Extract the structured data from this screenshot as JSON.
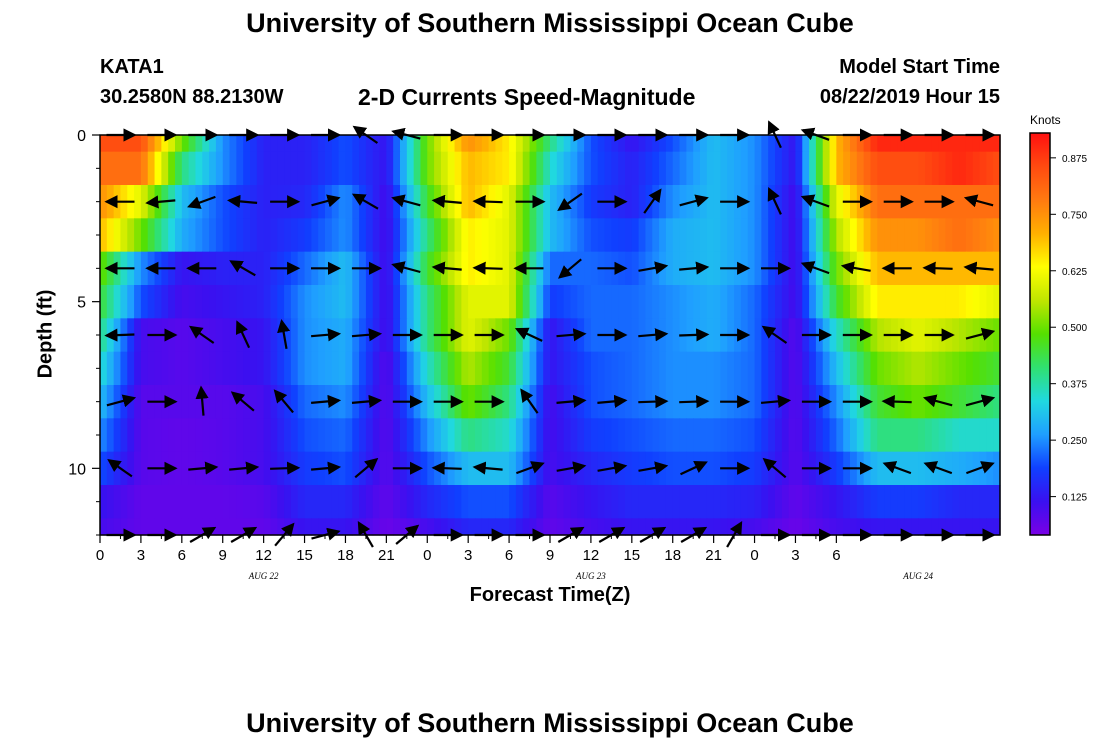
{
  "header": {
    "org_title": "University of Southern Mississippi Ocean Cube",
    "station": "KATA1",
    "coords": "30.2580N 88.2130W",
    "chart_title": "2-D Currents Speed-Magnitude",
    "model_start_label": "Model Start Time",
    "model_start_value": "08/22/2019 Hour 15"
  },
  "footer": {
    "org_title": "University of Southern Mississippi Ocean Cube"
  },
  "chart_data": {
    "type": "heatmap",
    "title": "2-D Currents Speed-Magnitude",
    "xlabel": "Forecast Time(Z)",
    "ylabel": "Depth (ft)",
    "x_tick_labels": [
      "0",
      "3",
      "6",
      "9",
      "12",
      "15",
      "18",
      "21",
      "0",
      "3",
      "6",
      "9",
      "12",
      "15",
      "18",
      "21",
      "0",
      "3",
      "6"
    ],
    "x_day_labels": [
      {
        "text": "AUG 22",
        "hour_offset": 12
      },
      {
        "text": "AUG 23",
        "hour_offset": 36
      },
      {
        "text": "AUG 24",
        "hour_offset": 60
      }
    ],
    "x_range_hours": [
      0,
      66
    ],
    "y_ticks": [
      0,
      5,
      10
    ],
    "y_tick_labels": [
      "0",
      "5",
      "10"
    ],
    "y_range": [
      0,
      12
    ],
    "y_inverted": true,
    "colorbar": {
      "title": "Knots",
      "ticks": [
        0.125,
        0.25,
        0.375,
        0.5,
        0.625,
        0.75,
        0.875
      ],
      "tick_labels": [
        "0.125",
        "0.250",
        "0.375",
        "0.500",
        "0.625",
        "0.750",
        "0.875"
      ],
      "range": [
        0.04,
        0.93
      ],
      "colors": [
        "#7a00e6",
        "#3a10f0",
        "#1040ff",
        "#1f9fff",
        "#20d8e0",
        "#30e070",
        "#55e000",
        "#bfe600",
        "#ffff00",
        "#ffb000",
        "#ff7a10",
        "#ff4a10",
        "#ff1010"
      ]
    },
    "grid_hours": [
      0,
      3,
      6,
      9,
      12,
      15,
      18,
      21,
      24,
      27,
      30,
      33,
      36,
      39,
      42,
      45,
      48,
      51,
      54,
      57,
      60,
      63,
      66
    ],
    "grid_depths": [
      0,
      1,
      2,
      3,
      4,
      5,
      6,
      7,
      8,
      9,
      10,
      11,
      12
    ],
    "speed_knots": [
      [
        0.85,
        0.85,
        0.5,
        0.25,
        0.14,
        0.14,
        0.2,
        0.12,
        0.5,
        0.75,
        0.65,
        0.4,
        0.2,
        0.12,
        0.2,
        0.3,
        0.25,
        0.12,
        0.7,
        0.9,
        0.9,
        0.9,
        0.9
      ],
      [
        0.8,
        0.8,
        0.4,
        0.25,
        0.14,
        0.14,
        0.2,
        0.12,
        0.5,
        0.7,
        0.65,
        0.35,
        0.2,
        0.14,
        0.22,
        0.3,
        0.25,
        0.12,
        0.7,
        0.85,
        0.85,
        0.9,
        0.85
      ],
      [
        0.75,
        0.6,
        0.3,
        0.2,
        0.14,
        0.15,
        0.25,
        0.1,
        0.45,
        0.7,
        0.6,
        0.3,
        0.18,
        0.14,
        0.25,
        0.3,
        0.25,
        0.1,
        0.6,
        0.8,
        0.8,
        0.8,
        0.8
      ],
      [
        0.7,
        0.5,
        0.28,
        0.2,
        0.14,
        0.18,
        0.25,
        0.1,
        0.4,
        0.65,
        0.6,
        0.3,
        0.2,
        0.18,
        0.28,
        0.3,
        0.25,
        0.1,
        0.55,
        0.75,
        0.75,
        0.8,
        0.75
      ],
      [
        0.5,
        0.25,
        0.12,
        0.14,
        0.14,
        0.22,
        0.3,
        0.1,
        0.45,
        0.65,
        0.6,
        0.22,
        0.22,
        0.2,
        0.28,
        0.3,
        0.25,
        0.1,
        0.5,
        0.7,
        0.7,
        0.7,
        0.7
      ],
      [
        0.45,
        0.2,
        0.1,
        0.12,
        0.14,
        0.25,
        0.3,
        0.1,
        0.4,
        0.6,
        0.6,
        0.18,
        0.22,
        0.22,
        0.25,
        0.28,
        0.22,
        0.1,
        0.45,
        0.65,
        0.65,
        0.65,
        0.6
      ],
      [
        0.4,
        0.1,
        0.08,
        0.1,
        0.12,
        0.25,
        0.28,
        0.1,
        0.4,
        0.6,
        0.5,
        0.12,
        0.22,
        0.22,
        0.25,
        0.28,
        0.22,
        0.08,
        0.35,
        0.55,
        0.6,
        0.55,
        0.5
      ],
      [
        0.35,
        0.1,
        0.08,
        0.1,
        0.12,
        0.25,
        0.28,
        0.08,
        0.35,
        0.55,
        0.45,
        0.12,
        0.2,
        0.22,
        0.25,
        0.25,
        0.22,
        0.08,
        0.3,
        0.5,
        0.55,
        0.5,
        0.45
      ],
      [
        0.3,
        0.08,
        0.08,
        0.08,
        0.1,
        0.22,
        0.25,
        0.08,
        0.3,
        0.5,
        0.4,
        0.1,
        0.2,
        0.22,
        0.25,
        0.25,
        0.22,
        0.08,
        0.25,
        0.45,
        0.5,
        0.45,
        0.4
      ],
      [
        0.25,
        0.08,
        0.07,
        0.08,
        0.1,
        0.2,
        0.22,
        0.08,
        0.25,
        0.4,
        0.35,
        0.1,
        0.18,
        0.2,
        0.22,
        0.22,
        0.2,
        0.08,
        0.22,
        0.4,
        0.4,
        0.35,
        0.35
      ],
      [
        0.2,
        0.08,
        0.07,
        0.08,
        0.1,
        0.18,
        0.2,
        0.08,
        0.2,
        0.3,
        0.3,
        0.1,
        0.15,
        0.18,
        0.2,
        0.2,
        0.18,
        0.08,
        0.18,
        0.3,
        0.3,
        0.28,
        0.25
      ],
      [
        0.12,
        0.07,
        0.07,
        0.07,
        0.08,
        0.15,
        0.15,
        0.07,
        0.15,
        0.2,
        0.2,
        0.08,
        0.12,
        0.15,
        0.15,
        0.15,
        0.14,
        0.07,
        0.12,
        0.18,
        0.18,
        0.15,
        0.15
      ],
      [
        0.1,
        0.07,
        0.07,
        0.07,
        0.07,
        0.12,
        0.12,
        0.06,
        0.1,
        0.15,
        0.15,
        0.07,
        0.1,
        0.12,
        0.12,
        0.12,
        0.1,
        0.06,
        0.1,
        0.12,
        0.12,
        0.12,
        0.12
      ]
    ],
    "vector_hours": [
      1.5,
      4.5,
      7.5,
      10.5,
      13.5,
      16.5,
      19.5,
      22.5,
      25.5,
      28.5,
      31.5,
      34.5,
      37.5,
      40.5,
      43.5,
      46.5,
      49.5,
      52.5,
      55.5,
      58.5,
      61.5,
      64.5
    ],
    "vector_depths": [
      0,
      2,
      4,
      6,
      8,
      10,
      12
    ],
    "vector_angles_deg": [
      [
        0,
        0,
        0,
        0,
        0,
        0,
        -145,
        -165,
        0,
        0,
        0,
        0,
        0,
        0,
        0,
        0,
        -115,
        -160,
        0,
        0,
        0,
        0
      ],
      [
        180,
        175,
        160,
        -175,
        0,
        -15,
        -150,
        -165,
        -175,
        -178,
        0,
        145,
        0,
        -55,
        -15,
        0,
        -115,
        -160,
        0,
        0,
        0,
        -165
      ],
      [
        180,
        180,
        180,
        -150,
        0,
        0,
        0,
        -165,
        -175,
        -178,
        180,
        140,
        0,
        -10,
        -5,
        0,
        0,
        -160,
        -170,
        180,
        -178,
        -175
      ],
      [
        178,
        0,
        -145,
        -115,
        -100,
        -5,
        -5,
        0,
        0,
        0,
        -155,
        -5,
        0,
        -5,
        -2,
        0,
        -145,
        0,
        0,
        0,
        0,
        -15
      ],
      [
        -15,
        0,
        -95,
        -140,
        -130,
        -5,
        -5,
        0,
        0,
        0,
        -125,
        -5,
        -5,
        -2,
        -2,
        0,
        -5,
        0,
        0,
        -178,
        -165,
        -15
      ],
      [
        -145,
        0,
        -5,
        -5,
        -2,
        -5,
        -40,
        0,
        -178,
        -175,
        -20,
        -10,
        -10,
        -10,
        -25,
        0,
        -140,
        0,
        0,
        -160,
        -160,
        -20
      ],
      [
        0,
        0,
        -30,
        -30,
        -50,
        -15,
        -120,
        -40,
        0,
        0,
        0,
        -30,
        -30,
        -30,
        -30,
        -60,
        0,
        0,
        0,
        0,
        0,
        0
      ]
    ]
  }
}
